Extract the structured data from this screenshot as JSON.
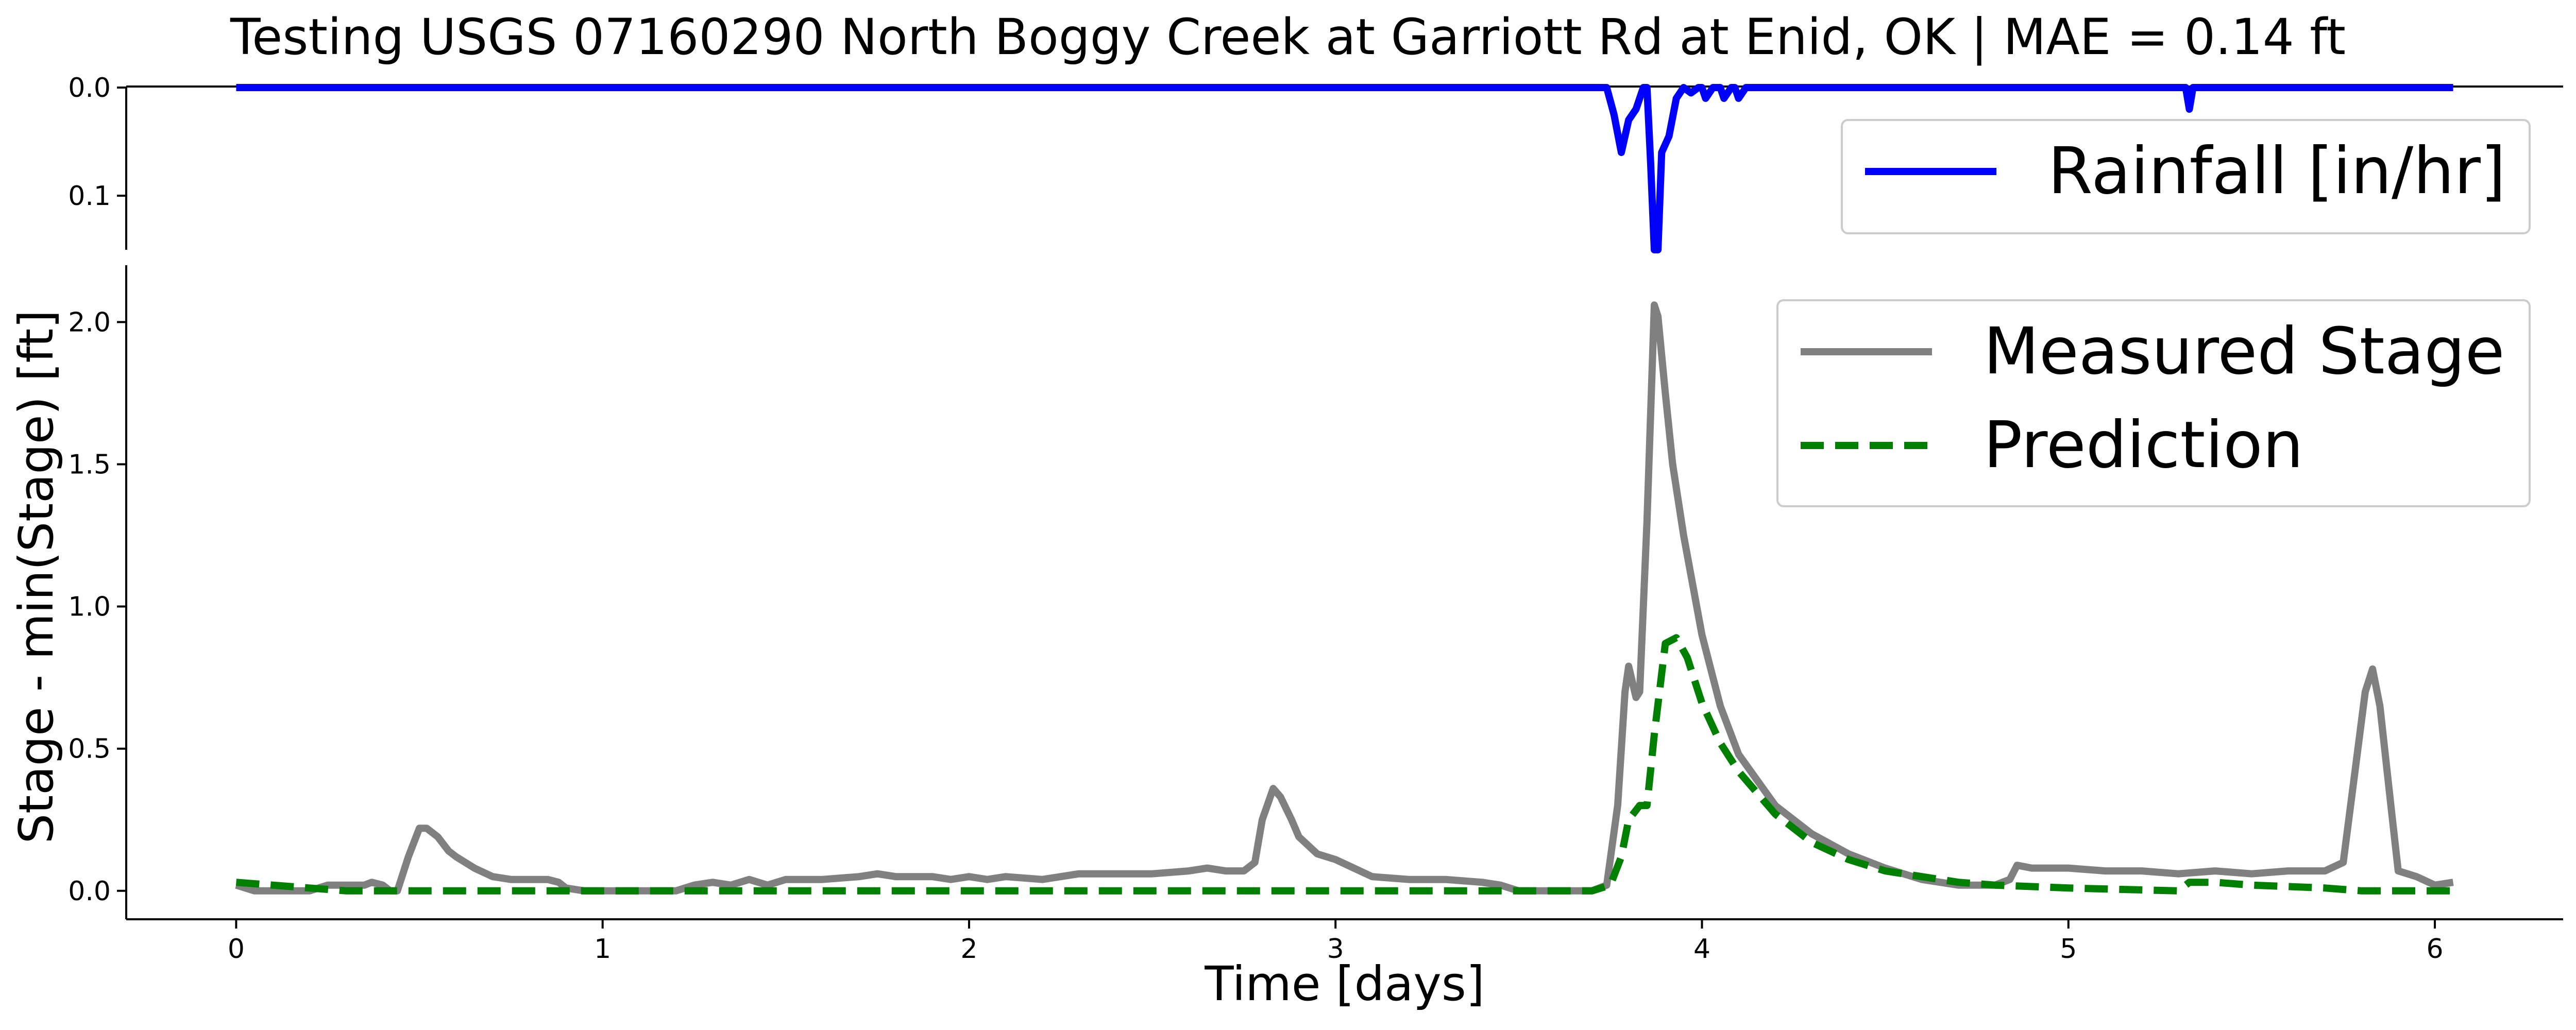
{
  "title": "Testing USGS 07160290 North Boggy Creek at Garriott Rd at Enid, OK | MAE = 0.14 ft",
  "colors": {
    "rainfall": "#0000ff",
    "measured": "#808080",
    "prediction": "#008000",
    "axis": "#000000"
  },
  "chart_data": [
    {
      "type": "line",
      "panel": "rainfall",
      "ylabel": "",
      "xlabel": "",
      "y_inverted": true,
      "ylim": [
        0.0,
        0.15
      ],
      "xlim": [
        -0.3,
        6.35
      ],
      "yticks": [
        0.0,
        0.1
      ],
      "ytick_labels": [
        "0.0",
        "0.1"
      ],
      "legend_location": "upper right",
      "series": [
        {
          "name": "Rainfall [in/hr]",
          "color": "#0000ff",
          "style": "solid",
          "points": [
            [
              0.0,
              0.0
            ],
            [
              3.74,
              0.0
            ],
            [
              3.76,
              0.025
            ],
            [
              3.78,
              0.06
            ],
            [
              3.8,
              0.03
            ],
            [
              3.82,
              0.02
            ],
            [
              3.84,
              0.0
            ],
            [
              3.85,
              0.0
            ],
            [
              3.86,
              0.07
            ],
            [
              3.87,
              0.15
            ],
            [
              3.88,
              0.15
            ],
            [
              3.89,
              0.06
            ],
            [
              3.91,
              0.045
            ],
            [
              3.93,
              0.01
            ],
            [
              3.95,
              0.0
            ],
            [
              3.97,
              0.005
            ],
            [
              3.99,
              0.0
            ],
            [
              4.0,
              0.0
            ],
            [
              4.01,
              0.01
            ],
            [
              4.03,
              0.0
            ],
            [
              4.05,
              0.0
            ],
            [
              4.06,
              0.01
            ],
            [
              4.08,
              0.0
            ],
            [
              4.09,
              0.0
            ],
            [
              4.1,
              0.01
            ],
            [
              4.12,
              0.0
            ],
            [
              5.32,
              0.0
            ],
            [
              5.33,
              0.02
            ],
            [
              5.34,
              0.0
            ],
            [
              6.05,
              0.0
            ]
          ]
        }
      ]
    },
    {
      "type": "line",
      "panel": "stage",
      "xlabel": "Time [days]",
      "ylabel": "Stage - min(Stage) [ft]",
      "xlim": [
        -0.3,
        6.35
      ],
      "ylim": [
        -0.1,
        2.2
      ],
      "xticks": [
        0,
        1,
        2,
        3,
        4,
        5,
        6
      ],
      "xtick_labels": [
        "0",
        "1",
        "2",
        "3",
        "4",
        "5",
        "6"
      ],
      "yticks": [
        0.0,
        0.5,
        1.0,
        1.5,
        2.0
      ],
      "ytick_labels": [
        "0.0",
        "0.5",
        "1.0",
        "1.5",
        "2.0"
      ],
      "legend_location": "upper right",
      "series": [
        {
          "name": "Measured Stage",
          "color": "#808080",
          "style": "solid",
          "points": [
            [
              0.0,
              0.02
            ],
            [
              0.05,
              0.0
            ],
            [
              0.1,
              0.0
            ],
            [
              0.2,
              0.0
            ],
            [
              0.25,
              0.02
            ],
            [
              0.3,
              0.02
            ],
            [
              0.35,
              0.02
            ],
            [
              0.37,
              0.03
            ],
            [
              0.4,
              0.02
            ],
            [
              0.42,
              0.0
            ],
            [
              0.44,
              0.0
            ],
            [
              0.47,
              0.12
            ],
            [
              0.5,
              0.22
            ],
            [
              0.52,
              0.22
            ],
            [
              0.55,
              0.19
            ],
            [
              0.58,
              0.14
            ],
            [
              0.6,
              0.12
            ],
            [
              0.65,
              0.08
            ],
            [
              0.7,
              0.05
            ],
            [
              0.75,
              0.04
            ],
            [
              0.8,
              0.04
            ],
            [
              0.85,
              0.04
            ],
            [
              0.88,
              0.03
            ],
            [
              0.9,
              0.01
            ],
            [
              0.95,
              0.0
            ],
            [
              1.0,
              0.0
            ],
            [
              1.1,
              0.0
            ],
            [
              1.2,
              0.0
            ],
            [
              1.25,
              0.02
            ],
            [
              1.3,
              0.03
            ],
            [
              1.35,
              0.02
            ],
            [
              1.4,
              0.04
            ],
            [
              1.45,
              0.02
            ],
            [
              1.5,
              0.04
            ],
            [
              1.6,
              0.04
            ],
            [
              1.7,
              0.05
            ],
            [
              1.75,
              0.06
            ],
            [
              1.8,
              0.05
            ],
            [
              1.9,
              0.05
            ],
            [
              1.95,
              0.04
            ],
            [
              2.0,
              0.05
            ],
            [
              2.05,
              0.04
            ],
            [
              2.1,
              0.05
            ],
            [
              2.2,
              0.04
            ],
            [
              2.3,
              0.06
            ],
            [
              2.4,
              0.06
            ],
            [
              2.5,
              0.06
            ],
            [
              2.6,
              0.07
            ],
            [
              2.65,
              0.08
            ],
            [
              2.7,
              0.07
            ],
            [
              2.75,
              0.07
            ],
            [
              2.78,
              0.1
            ],
            [
              2.8,
              0.25
            ],
            [
              2.83,
              0.36
            ],
            [
              2.85,
              0.33
            ],
            [
              2.88,
              0.25
            ],
            [
              2.9,
              0.19
            ],
            [
              2.95,
              0.13
            ],
            [
              3.0,
              0.11
            ],
            [
              3.05,
              0.08
            ],
            [
              3.1,
              0.05
            ],
            [
              3.2,
              0.04
            ],
            [
              3.3,
              0.04
            ],
            [
              3.4,
              0.03
            ],
            [
              3.45,
              0.02
            ],
            [
              3.5,
              0.0
            ],
            [
              3.6,
              0.0
            ],
            [
              3.7,
              0.0
            ],
            [
              3.74,
              0.02
            ],
            [
              3.77,
              0.3
            ],
            [
              3.79,
              0.7
            ],
            [
              3.8,
              0.79
            ],
            [
              3.82,
              0.68
            ],
            [
              3.83,
              0.7
            ],
            [
              3.85,
              1.3
            ],
            [
              3.87,
              2.06
            ],
            [
              3.88,
              2.02
            ],
            [
              3.9,
              1.75
            ],
            [
              3.92,
              1.5
            ],
            [
              3.95,
              1.25
            ],
            [
              4.0,
              0.9
            ],
            [
              4.05,
              0.65
            ],
            [
              4.1,
              0.48
            ],
            [
              4.2,
              0.3
            ],
            [
              4.3,
              0.2
            ],
            [
              4.4,
              0.13
            ],
            [
              4.5,
              0.08
            ],
            [
              4.6,
              0.04
            ],
            [
              4.7,
              0.02
            ],
            [
              4.8,
              0.02
            ],
            [
              4.84,
              0.04
            ],
            [
              4.86,
              0.09
            ],
            [
              4.9,
              0.08
            ],
            [
              5.0,
              0.08
            ],
            [
              5.1,
              0.07
            ],
            [
              5.2,
              0.07
            ],
            [
              5.3,
              0.06
            ],
            [
              5.4,
              0.07
            ],
            [
              5.5,
              0.06
            ],
            [
              5.6,
              0.07
            ],
            [
              5.7,
              0.07
            ],
            [
              5.75,
              0.1
            ],
            [
              5.78,
              0.4
            ],
            [
              5.81,
              0.7
            ],
            [
              5.83,
              0.78
            ],
            [
              5.85,
              0.65
            ],
            [
              5.88,
              0.3
            ],
            [
              5.9,
              0.07
            ],
            [
              5.95,
              0.05
            ],
            [
              6.0,
              0.02
            ],
            [
              6.05,
              0.03
            ]
          ]
        },
        {
          "name": "Prediction",
          "color": "#008000",
          "style": "dashed",
          "points": [
            [
              0.0,
              0.03
            ],
            [
              0.1,
              0.02
            ],
            [
              0.2,
              0.01
            ],
            [
              0.3,
              0.0
            ],
            [
              0.5,
              0.0
            ],
            [
              1.0,
              0.0
            ],
            [
              2.0,
              0.0
            ],
            [
              3.0,
              0.0
            ],
            [
              3.7,
              0.0
            ],
            [
              3.75,
              0.02
            ],
            [
              3.78,
              0.12
            ],
            [
              3.8,
              0.25
            ],
            [
              3.83,
              0.3
            ],
            [
              3.85,
              0.3
            ],
            [
              3.87,
              0.55
            ],
            [
              3.9,
              0.87
            ],
            [
              3.93,
              0.89
            ],
            [
              3.96,
              0.82
            ],
            [
              4.0,
              0.66
            ],
            [
              4.05,
              0.52
            ],
            [
              4.1,
              0.42
            ],
            [
              4.2,
              0.27
            ],
            [
              4.3,
              0.17
            ],
            [
              4.4,
              0.11
            ],
            [
              4.5,
              0.07
            ],
            [
              4.6,
              0.05
            ],
            [
              4.7,
              0.03
            ],
            [
              4.8,
              0.02
            ],
            [
              5.0,
              0.01
            ],
            [
              5.3,
              0.0
            ],
            [
              5.33,
              0.03
            ],
            [
              5.4,
              0.03
            ],
            [
              5.5,
              0.02
            ],
            [
              5.7,
              0.01
            ],
            [
              5.8,
              0.0
            ],
            [
              6.05,
              0.0
            ]
          ]
        }
      ]
    }
  ]
}
